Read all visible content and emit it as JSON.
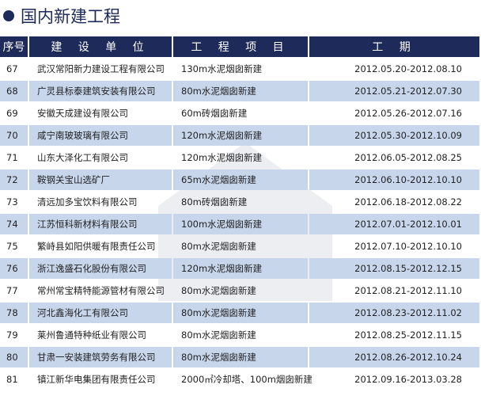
{
  "title": "国内新建工程",
  "colors": {
    "header_bg": "#1e2a5a",
    "stripe": "#c8d6ec"
  },
  "table": {
    "headers": [
      "序号",
      "建 设 单 位",
      "工 程 项 目",
      "工 期"
    ],
    "rows": [
      [
        "67",
        "武汉常阳新力建设工程有限公司",
        "130m水泥烟囱新建",
        "2012.05.20-2012.08.10"
      ],
      [
        "68",
        "广灵县标泰建筑安装有限公司",
        "80m水泥烟囱新建",
        "2012.05.21-2012.07.30"
      ],
      [
        "69",
        "安徽天成建设有限公司",
        "60m砖烟囱新建",
        "2012.05.26-2012.07.16"
      ],
      [
        "70",
        "咸宁南玻玻璃有限公司",
        "120m水泥烟囱新建",
        "2012.05.30-2012.10.09"
      ],
      [
        "71",
        "山东大泽化工有限公司",
        "120m水泥烟囱新建",
        "2012.06.05-2012.08.25"
      ],
      [
        "72",
        "鞍钢关宝山选矿厂",
        "65m水泥烟囱新建",
        "2012.06.10-2012.10.10"
      ],
      [
        "73",
        "清远加多宝饮料有限公司",
        "80m砖烟囱新建",
        "2012.06.18-2012.08.22"
      ],
      [
        "74",
        "江苏恒科新材料有限公司",
        "100m水泥烟囱新建",
        "2012.07.01-2012.10.01"
      ],
      [
        "75",
        "繁峙县如阳供暖有限责任公司",
        "80m水泥烟囱新建",
        "2012.07.10-2012.10.10"
      ],
      [
        "76",
        "浙江逸盛石化股份有限公司",
        "120m水泥烟囱新建",
        "2012.08.15-2012.12.15"
      ],
      [
        "77",
        "常州常宝精特能源管材有限公司",
        "80m水泥烟囱新建",
        "2012.08.21-2012.11.10"
      ],
      [
        "78",
        "河北鑫海化工有限公司",
        "80m水泥烟囱新建",
        "2012.08.23-2012.11.02"
      ],
      [
        "79",
        "莱州鲁通特种纸业有限公司",
        "80m水泥烟囱新建",
        "2012.08.25-2012.11.15"
      ],
      [
        "80",
        "甘肃一安装建筑劳务有限公司",
        "80m水泥烟囱新建",
        "2012.08.26-2012.10.24"
      ],
      [
        "81",
        "镇江新华电集团有限责任公司",
        "2000㎡冷却塔、100m烟囱新建",
        "2012.09.16-2013.03.28"
      ]
    ]
  }
}
